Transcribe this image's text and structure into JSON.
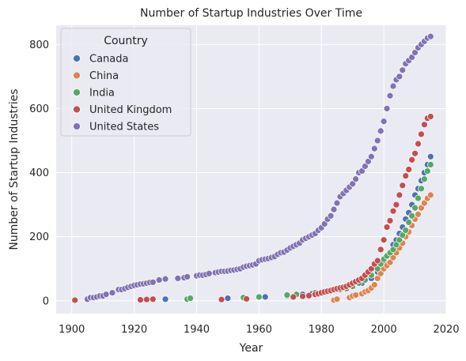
{
  "chart_data": {
    "type": "scatter",
    "title": "Number of Startup Industries Over Time",
    "xlabel": "Year",
    "ylabel": "Number of Startup Industries",
    "xlim": [
      1895,
      2020
    ],
    "ylim": [
      -40,
      860
    ],
    "xticks": [
      1900,
      1920,
      1940,
      1960,
      1980,
      2000,
      2020
    ],
    "yticks": [
      0,
      200,
      400,
      600,
      800
    ],
    "grid": true,
    "legend": {
      "title": "Country",
      "placement": "top-left",
      "entries": [
        "Canada",
        "China",
        "India",
        "United Kingdom",
        "United States"
      ]
    },
    "colors": {
      "Canada": "#4c72b0",
      "China": "#dd8452",
      "India": "#55a868",
      "United Kingdom": "#c44e52",
      "United States": "#8172b3",
      "background": "#eaeaf2",
      "grid": "#ffffff"
    },
    "series": [
      {
        "name": "United States",
        "x": [
          1905,
          1906,
          1907,
          1908,
          1909,
          1910,
          1911,
          1913,
          1915,
          1916,
          1917,
          1918,
          1919,
          1920,
          1921,
          1922,
          1923,
          1924,
          1925,
          1926,
          1928,
          1930,
          1934,
          1936,
          1937,
          1940,
          1941,
          1942,
          1943,
          1944,
          1946,
          1947,
          1948,
          1949,
          1950,
          1951,
          1952,
          1953,
          1954,
          1955,
          1956,
          1957,
          1958,
          1959,
          1960,
          1961,
          1962,
          1963,
          1964,
          1965,
          1966,
          1967,
          1968,
          1969,
          1970,
          1971,
          1972,
          1973,
          1974,
          1975,
          1976,
          1977,
          1978,
          1979,
          1980,
          1981,
          1982,
          1983,
          1984,
          1985,
          1986,
          1987,
          1988,
          1989,
          1990,
          1991,
          1992,
          1993,
          1994,
          1995,
          1996,
          1997,
          1998,
          1999,
          2000,
          2001,
          2002,
          2003,
          2004,
          2005,
          2006,
          2007,
          2008,
          2009,
          2010,
          2011,
          2012,
          2013,
          2014,
          2015
        ],
        "y": [
          5,
          10,
          10,
          12,
          15,
          15,
          20,
          25,
          35,
          35,
          38,
          42,
          45,
          48,
          50,
          52,
          53,
          55,
          57,
          58,
          65,
          68,
          70,
          72,
          75,
          78,
          80,
          80,
          82,
          85,
          88,
          90,
          92,
          92,
          93,
          95,
          96,
          98,
          100,
          105,
          108,
          110,
          112,
          115,
          125,
          128,
          130,
          132,
          135,
          138,
          145,
          150,
          152,
          158,
          165,
          170,
          175,
          180,
          190,
          195,
          200,
          205,
          210,
          220,
          228,
          240,
          255,
          265,
          285,
          305,
          325,
          335,
          345,
          355,
          365,
          380,
          400,
          405,
          420,
          435,
          450,
          475,
          500,
          530,
          560,
          600,
          640,
          670,
          690,
          700,
          720,
          740,
          750,
          760,
          775,
          790,
          800,
          810,
          820,
          825
        ]
      },
      {
        "name": "Canada",
        "x": [
          1930,
          1950,
          1955,
          1962,
          1969,
          1972,
          1974,
          1977,
          1980,
          1982,
          1985,
          1990,
          1993,
          1996,
          1998,
          1999,
          2000,
          2002,
          2003,
          2004,
          2005,
          2006,
          2007,
          2008,
          2009,
          2010,
          2011,
          2012,
          2013,
          2014,
          2015
        ],
        "y": [
          5,
          8,
          10,
          12,
          15,
          18,
          20,
          22,
          25,
          30,
          35,
          45,
          55,
          70,
          90,
          110,
          125,
          150,
          175,
          190,
          210,
          230,
          255,
          275,
          300,
          330,
          350,
          375,
          400,
          425,
          450
        ]
      },
      {
        "name": "China",
        "x": [
          1984,
          1985,
          1989,
          1990,
          1991,
          1993,
          1994,
          1995,
          1996,
          1997,
          1998,
          1999,
          2000,
          2001,
          2002,
          2003,
          2004,
          2005,
          2006,
          2007,
          2008,
          2009,
          2010,
          2011,
          2012,
          2013,
          2014,
          2015
        ],
        "y": [
          2,
          5,
          10,
          15,
          18,
          22,
          28,
          32,
          40,
          50,
          70,
          85,
          100,
          110,
          120,
          135,
          150,
          165,
          180,
          200,
          215,
          235,
          255,
          270,
          290,
          305,
          320,
          330
        ]
      },
      {
        "name": "India",
        "x": [
          1937,
          1938,
          1955,
          1960,
          1969,
          1972,
          1978,
          1983,
          1986,
          1988,
          1990,
          1992,
          1994,
          1996,
          1998,
          1999,
          2000,
          2001,
          2002,
          2003,
          2004,
          2005,
          2006,
          2007,
          2008,
          2009,
          2010,
          2011,
          2012,
          2013,
          2014,
          2015
        ],
        "y": [
          5,
          8,
          10,
          12,
          18,
          20,
          25,
          30,
          35,
          38,
          45,
          55,
          65,
          80,
          100,
          115,
          130,
          140,
          150,
          160,
          175,
          190,
          205,
          220,
          245,
          265,
          290,
          320,
          350,
          380,
          405,
          425
        ]
      },
      {
        "name": "United Kingdom",
        "x": [
          1901,
          1922,
          1924,
          1926,
          1948,
          1956,
          1971,
          1974,
          1976,
          1978,
          1979,
          1980,
          1981,
          1982,
          1983,
          1984,
          1985,
          1986,
          1987,
          1988,
          1989,
          1990,
          1991,
          1992,
          1993,
          1994,
          1995,
          1996,
          1997,
          1998,
          1999,
          2000,
          2001,
          2002,
          2003,
          2004,
          2005,
          2006,
          2007,
          2008,
          2009,
          2010,
          2011,
          2012,
          2013,
          2014,
          2015
        ],
        "y": [
          2,
          3,
          4,
          5,
          4,
          6,
          12,
          14,
          16,
          20,
          22,
          25,
          28,
          30,
          32,
          35,
          38,
          40,
          42,
          45,
          50,
          55,
          60,
          65,
          70,
          80,
          90,
          100,
          115,
          125,
          160,
          190,
          230,
          250,
          280,
          300,
          330,
          360,
          390,
          410,
          440,
          460,
          490,
          520,
          550,
          570,
          575
        ]
      }
    ]
  }
}
